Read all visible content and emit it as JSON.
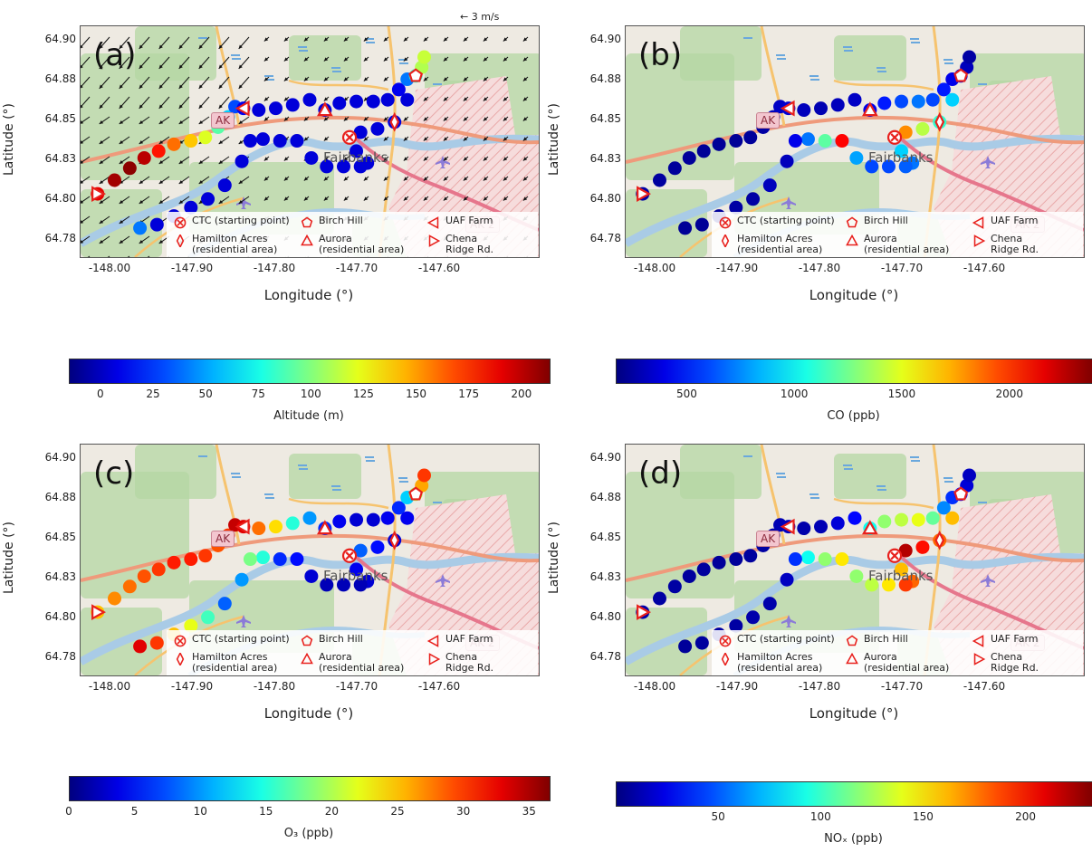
{
  "figure": {
    "panels": [
      {
        "id": "a",
        "label": "(a)",
        "colorbar_label": "Altitude (m)",
        "cmin": -15,
        "cmax": 213,
        "ticks": [
          0,
          25,
          50,
          75,
          100,
          125,
          150,
          175,
          200
        ],
        "var": "alt",
        "has_wind": true
      },
      {
        "id": "b",
        "label": "(b)",
        "colorbar_label": "CO (ppb)",
        "cmin": 170,
        "cmax": 2380,
        "ticks": [
          500,
          1000,
          1500,
          2000
        ],
        "var": "co",
        "has_wind": false
      },
      {
        "id": "c",
        "label": "(c)",
        "colorbar_label": "O₃ (ppb)",
        "cmin": 0,
        "cmax": 36.5,
        "ticks": [
          0,
          5,
          10,
          15,
          20,
          25,
          30,
          35
        ],
        "var": "o3",
        "has_wind": false
      },
      {
        "id": "d",
        "label": "(d)",
        "colorbar_label": "NOₓ (ppb)",
        "cmin": 0,
        "cmax": 232,
        "ticks": [
          50,
          100,
          150,
          200
        ],
        "var": "nox",
        "has_wind": false
      }
    ],
    "x_ticks": [
      "-148.00",
      "-147.90",
      "-147.80",
      "-147.70",
      "-147.60"
    ],
    "y_ticks": [
      "64.90",
      "64.88",
      "64.85",
      "64.83",
      "64.80",
      "64.78"
    ],
    "xlabel": "Longitude (°)",
    "ylabel": "Latitude (°)",
    "city_label": "Fairbanks",
    "highway_label": "AK 2",
    "airport_label": "AK",
    "wind_reference": "3 m/s",
    "legend": [
      {
        "marker": "x-circle",
        "label": "CTC (starting point)"
      },
      {
        "marker": "pentagon",
        "label": "Birch Hill"
      },
      {
        "marker": "left-triangle",
        "label": "UAF Farm"
      },
      {
        "marker": "diamond",
        "label": "Hamilton Acres\n(residential area)"
      },
      {
        "marker": "up-triangle",
        "label": "Aurora\n(residential area)"
      },
      {
        "marker": "right-triangle",
        "label": "Chena\nRidge Rd."
      }
    ],
    "marker_color": "#e8201c",
    "colormap": "jet"
  },
  "chart_data": {
    "type": "scatter",
    "x_range": [
      -148.05,
      -147.51
    ],
    "y_range": [
      64.77,
      64.905
    ],
    "sites": [
      {
        "name": "CTC (starting point)",
        "lon": -147.733,
        "lat": 64.84
      },
      {
        "name": "Birch Hill",
        "lon": -147.655,
        "lat": 64.876
      },
      {
        "name": "UAF Farm",
        "lon": -147.858,
        "lat": 64.857
      },
      {
        "name": "Hamilton Acres (residential area)",
        "lon": -147.68,
        "lat": 64.849
      },
      {
        "name": "Aurora (residential area)",
        "lon": -147.762,
        "lat": 64.856
      },
      {
        "name": "Chena Ridge Rd.",
        "lon": -148.03,
        "lat": 64.807
      }
    ],
    "track": [
      {
        "lon": -148.03,
        "lat": 64.807,
        "alt": 190,
        "co": 250,
        "o3": 25,
        "nox": 10
      },
      {
        "lon": -148.01,
        "lat": 64.815,
        "alt": 205,
        "co": 240,
        "o3": 27,
        "nox": 8
      },
      {
        "lon": -147.992,
        "lat": 64.822,
        "alt": 210,
        "co": 230,
        "o3": 28,
        "nox": 8
      },
      {
        "lon": -147.975,
        "lat": 64.828,
        "alt": 200,
        "co": 230,
        "o3": 29,
        "nox": 7
      },
      {
        "lon": -147.958,
        "lat": 64.832,
        "alt": 180,
        "co": 220,
        "o3": 30,
        "nox": 7
      },
      {
        "lon": -147.94,
        "lat": 64.836,
        "alt": 160,
        "co": 220,
        "o3": 31,
        "nox": 6
      },
      {
        "lon": -147.92,
        "lat": 64.838,
        "alt": 140,
        "co": 220,
        "o3": 31,
        "nox": 6
      },
      {
        "lon": -147.903,
        "lat": 64.84,
        "alt": 120,
        "co": 230,
        "o3": 30,
        "nox": 7
      },
      {
        "lon": -147.888,
        "lat": 64.846,
        "alt": 90,
        "co": 250,
        "o3": 29,
        "nox": 8
      },
      {
        "lon": -147.876,
        "lat": 64.852,
        "alt": 60,
        "co": 300,
        "o3": 30,
        "nox": 10
      },
      {
        "lon": -147.868,
        "lat": 64.858,
        "alt": 30,
        "co": 320,
        "o3": 34,
        "nox": 12
      },
      {
        "lon": -147.858,
        "lat": 64.857,
        "alt": 10,
        "co": 350,
        "o3": 33,
        "nox": 15
      },
      {
        "lon": -147.84,
        "lat": 64.856,
        "alt": 5,
        "co": 300,
        "o3": 28,
        "nox": 10
      },
      {
        "lon": -147.82,
        "lat": 64.857,
        "alt": 5,
        "co": 280,
        "o3": 24,
        "nox": 12
      },
      {
        "lon": -147.8,
        "lat": 64.859,
        "alt": 5,
        "co": 300,
        "o3": 15,
        "nox": 20
      },
      {
        "lon": -147.78,
        "lat": 64.862,
        "alt": 5,
        "co": 320,
        "o3": 10,
        "nox": 30
      },
      {
        "lon": -147.762,
        "lat": 64.856,
        "alt": 5,
        "co": 400,
        "o3": 6,
        "nox": 90
      },
      {
        "lon": -147.745,
        "lat": 64.86,
        "alt": 5,
        "co": 500,
        "o3": 4,
        "nox": 120
      },
      {
        "lon": -147.725,
        "lat": 64.861,
        "alt": 5,
        "co": 600,
        "o3": 3,
        "nox": 130
      },
      {
        "lon": -147.705,
        "lat": 64.861,
        "alt": 5,
        "co": 700,
        "o3": 3,
        "nox": 140
      },
      {
        "lon": -147.688,
        "lat": 64.862,
        "alt": 5,
        "co": 600,
        "o3": 4,
        "nox": 110
      },
      {
        "lon": -147.675,
        "lat": 64.868,
        "alt": 10,
        "co": 500,
        "o3": 6,
        "nox": 60
      },
      {
        "lon": -147.665,
        "lat": 64.874,
        "alt": 40,
        "co": 400,
        "o3": 12,
        "nox": 40
      },
      {
        "lon": -147.655,
        "lat": 64.876,
        "alt": 80,
        "co": 350,
        "o3": 20,
        "nox": 30
      },
      {
        "lon": -147.648,
        "lat": 64.881,
        "alt": 110,
        "co": 300,
        "o3": 26,
        "nox": 20
      },
      {
        "lon": -147.645,
        "lat": 64.887,
        "alt": 115,
        "co": 250,
        "o3": 30,
        "nox": 15
      },
      {
        "lon": -147.665,
        "lat": 64.862,
        "alt": 5,
        "co": 900,
        "o3": 4,
        "nox": 160
      },
      {
        "lon": -147.68,
        "lat": 64.849,
        "alt": 5,
        "co": 1100,
        "o3": 3,
        "nox": 180
      },
      {
        "lon": -147.7,
        "lat": 64.845,
        "alt": 5,
        "co": 1400,
        "o3": 5,
        "nox": 200
      },
      {
        "lon": -147.72,
        "lat": 64.843,
        "alt": 5,
        "co": 1800,
        "o3": 8,
        "nox": 220
      },
      {
        "lon": -147.733,
        "lat": 64.84,
        "alt": 5,
        "co": 2000,
        "o3": 7,
        "nox": 210
      },
      {
        "lon": -147.725,
        "lat": 64.832,
        "alt": 5,
        "co": 900,
        "o3": 4,
        "nox": 160
      },
      {
        "lon": -147.712,
        "lat": 64.825,
        "alt": 5,
        "co": 700,
        "o3": 3,
        "nox": 180
      },
      {
        "lon": -147.72,
        "lat": 64.823,
        "alt": 5,
        "co": 650,
        "o3": 2,
        "nox": 190
      },
      {
        "lon": -147.74,
        "lat": 64.823,
        "alt": 5,
        "co": 600,
        "o3": 2,
        "nox": 150
      },
      {
        "lon": -147.76,
        "lat": 64.823,
        "alt": 5,
        "co": 600,
        "o3": 2,
        "nox": 130
      },
      {
        "lon": -147.778,
        "lat": 64.828,
        "alt": 5,
        "co": 800,
        "o3": 3,
        "nox": 120
      },
      {
        "lon": -147.795,
        "lat": 64.838,
        "alt": 5,
        "co": 2100,
        "o3": 5,
        "nox": 150
      },
      {
        "lon": -147.815,
        "lat": 64.838,
        "alt": 5,
        "co": 1200,
        "o3": 6,
        "nox": 120
      },
      {
        "lon": -147.835,
        "lat": 64.839,
        "alt": 5,
        "co": 700,
        "o3": 15,
        "nox": 90
      },
      {
        "lon": -147.85,
        "lat": 64.838,
        "alt": 5,
        "co": 400,
        "o3": 18,
        "nox": 40
      },
      {
        "lon": -147.86,
        "lat": 64.826,
        "alt": 5,
        "co": 300,
        "o3": 10,
        "nox": 15
      },
      {
        "lon": -147.88,
        "lat": 64.812,
        "alt": 5,
        "co": 300,
        "o3": 8,
        "nox": 10
      },
      {
        "lon": -147.9,
        "lat": 64.804,
        "alt": 5,
        "co": 250,
        "o3": 16,
        "nox": 10
      },
      {
        "lon": -147.92,
        "lat": 64.799,
        "alt": 5,
        "co": 250,
        "o3": 22,
        "nox": 8
      },
      {
        "lon": -147.94,
        "lat": 64.794,
        "alt": 5,
        "co": 230,
        "o3": 25,
        "nox": 8
      },
      {
        "lon": -147.96,
        "lat": 64.789,
        "alt": 5,
        "co": 220,
        "o3": 30,
        "nox": 7
      },
      {
        "lon": -147.98,
        "lat": 64.787,
        "alt": 40,
        "co": 220,
        "o3": 33,
        "nox": 6
      }
    ]
  }
}
